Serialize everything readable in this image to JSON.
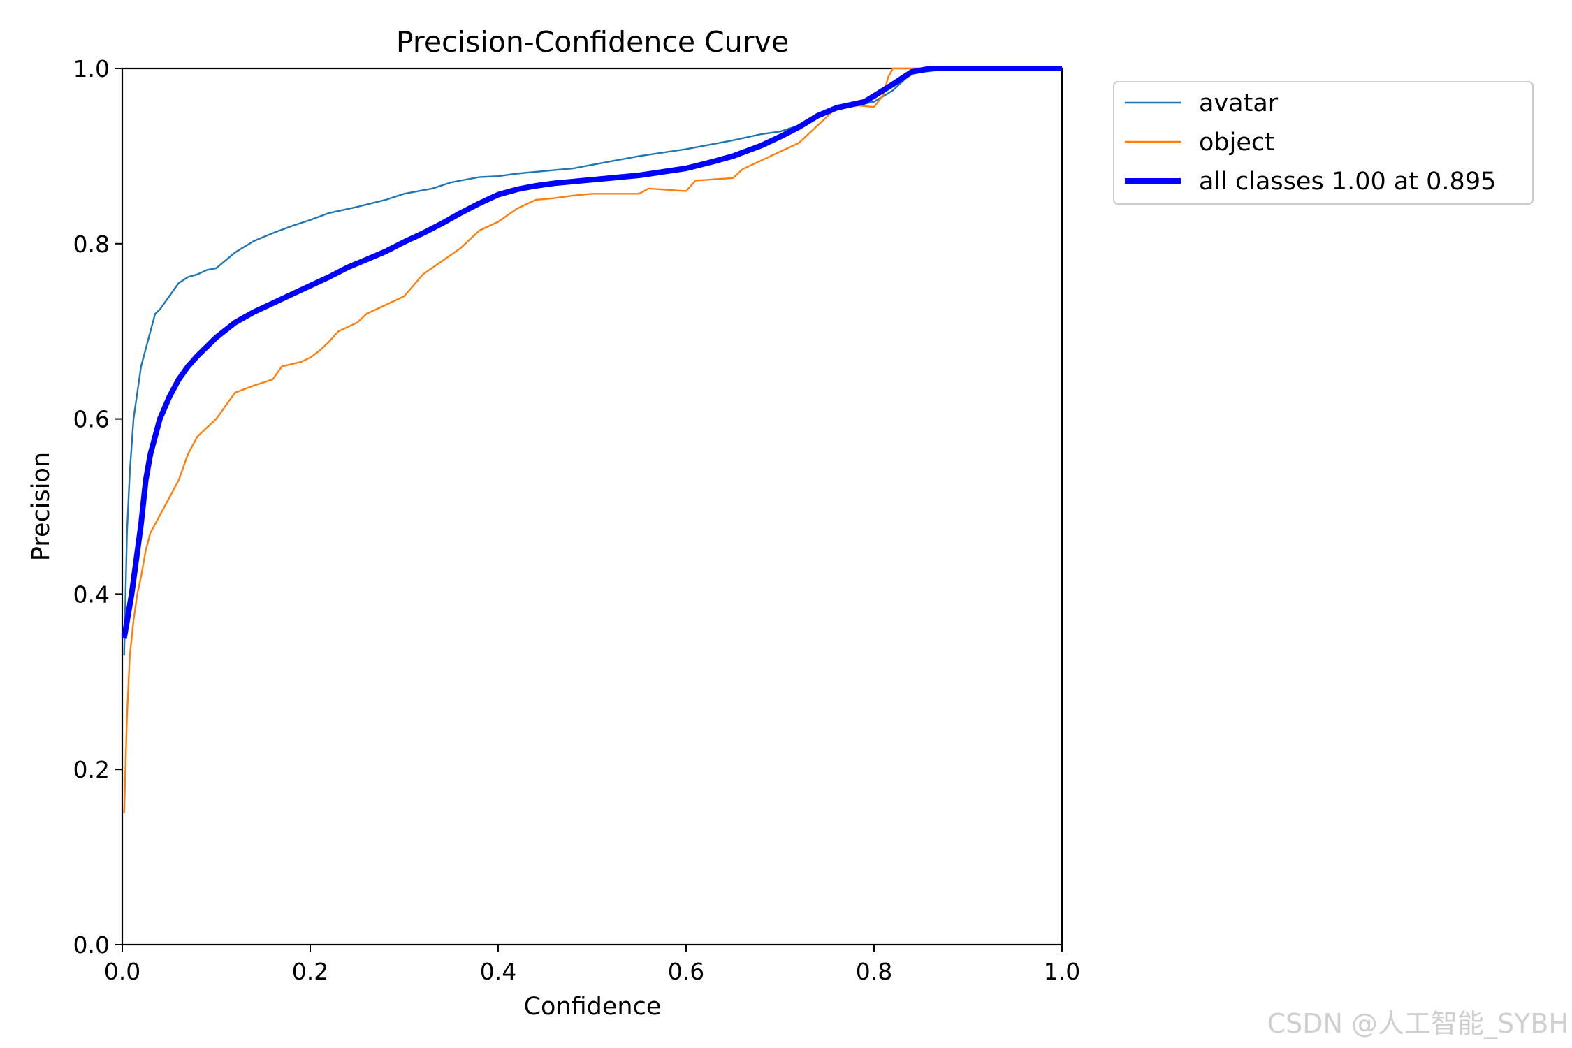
{
  "chart_data": {
    "type": "line",
    "title": "Precision-Confidence Curve",
    "xlabel": "Confidence",
    "ylabel": "Precision",
    "xlim": [
      0,
      1
    ],
    "ylim": [
      0,
      1
    ],
    "xticks": [
      "0.0",
      "0.2",
      "0.4",
      "0.6",
      "0.8",
      "1.0"
    ],
    "yticks": [
      "0.0",
      "0.2",
      "0.4",
      "0.6",
      "0.8",
      "1.0"
    ],
    "grid": false,
    "legend_position": "outside-top-right",
    "series": [
      {
        "name": "avatar",
        "color": "#1f77b4",
        "width": "thin",
        "points": [
          [
            0.002,
            0.33
          ],
          [
            0.005,
            0.47
          ],
          [
            0.008,
            0.54
          ],
          [
            0.012,
            0.6
          ],
          [
            0.016,
            0.63
          ],
          [
            0.02,
            0.66
          ],
          [
            0.025,
            0.68
          ],
          [
            0.03,
            0.7
          ],
          [
            0.035,
            0.72
          ],
          [
            0.04,
            0.725
          ],
          [
            0.05,
            0.74
          ],
          [
            0.06,
            0.755
          ],
          [
            0.07,
            0.762
          ],
          [
            0.08,
            0.765
          ],
          [
            0.09,
            0.77
          ],
          [
            0.1,
            0.772
          ],
          [
            0.12,
            0.79
          ],
          [
            0.14,
            0.803
          ],
          [
            0.16,
            0.812
          ],
          [
            0.18,
            0.82
          ],
          [
            0.2,
            0.827
          ],
          [
            0.22,
            0.835
          ],
          [
            0.25,
            0.842
          ],
          [
            0.28,
            0.85
          ],
          [
            0.3,
            0.857
          ],
          [
            0.33,
            0.863
          ],
          [
            0.35,
            0.87
          ],
          [
            0.38,
            0.876
          ],
          [
            0.4,
            0.877
          ],
          [
            0.42,
            0.88
          ],
          [
            0.45,
            0.883
          ],
          [
            0.48,
            0.886
          ],
          [
            0.5,
            0.89
          ],
          [
            0.55,
            0.9
          ],
          [
            0.6,
            0.908
          ],
          [
            0.65,
            0.918
          ],
          [
            0.68,
            0.925
          ],
          [
            0.7,
            0.928
          ],
          [
            0.72,
            0.935
          ],
          [
            0.75,
            0.95
          ],
          [
            0.78,
            0.958
          ],
          [
            0.8,
            0.962
          ],
          [
            0.82,
            0.975
          ],
          [
            0.84,
            0.995
          ],
          [
            0.86,
            0.997
          ],
          [
            0.88,
            1.0
          ],
          [
            1.0,
            1.0
          ]
        ]
      },
      {
        "name": "object",
        "color": "#ff7f0e",
        "width": "thin",
        "points": [
          [
            0.002,
            0.15
          ],
          [
            0.005,
            0.26
          ],
          [
            0.008,
            0.33
          ],
          [
            0.012,
            0.37
          ],
          [
            0.016,
            0.4
          ],
          [
            0.02,
            0.42
          ],
          [
            0.025,
            0.45
          ],
          [
            0.03,
            0.47
          ],
          [
            0.035,
            0.48
          ],
          [
            0.04,
            0.49
          ],
          [
            0.05,
            0.51
          ],
          [
            0.06,
            0.53
          ],
          [
            0.07,
            0.56
          ],
          [
            0.08,
            0.58
          ],
          [
            0.09,
            0.59
          ],
          [
            0.1,
            0.6
          ],
          [
            0.11,
            0.615
          ],
          [
            0.12,
            0.63
          ],
          [
            0.14,
            0.638
          ],
          [
            0.16,
            0.645
          ],
          [
            0.17,
            0.66
          ],
          [
            0.19,
            0.665
          ],
          [
            0.2,
            0.67
          ],
          [
            0.21,
            0.678
          ],
          [
            0.22,
            0.688
          ],
          [
            0.23,
            0.7
          ],
          [
            0.25,
            0.71
          ],
          [
            0.26,
            0.72
          ],
          [
            0.28,
            0.73
          ],
          [
            0.3,
            0.74
          ],
          [
            0.32,
            0.765
          ],
          [
            0.34,
            0.78
          ],
          [
            0.36,
            0.795
          ],
          [
            0.38,
            0.815
          ],
          [
            0.4,
            0.825
          ],
          [
            0.42,
            0.84
          ],
          [
            0.44,
            0.85
          ],
          [
            0.46,
            0.852
          ],
          [
            0.48,
            0.855
          ],
          [
            0.5,
            0.857
          ],
          [
            0.55,
            0.857
          ],
          [
            0.56,
            0.863
          ],
          [
            0.6,
            0.86
          ],
          [
            0.61,
            0.872
          ],
          [
            0.65,
            0.875
          ],
          [
            0.66,
            0.885
          ],
          [
            0.68,
            0.895
          ],
          [
            0.7,
            0.905
          ],
          [
            0.72,
            0.915
          ],
          [
            0.74,
            0.935
          ],
          [
            0.76,
            0.955
          ],
          [
            0.78,
            0.958
          ],
          [
            0.8,
            0.956
          ],
          [
            0.81,
            0.97
          ],
          [
            0.815,
            0.99
          ],
          [
            0.82,
            1.0
          ],
          [
            1.0,
            1.0
          ]
        ]
      },
      {
        "name": "all classes 1.00 at 0.895",
        "color": "#0000ff",
        "width": "thick",
        "points": [
          [
            0.002,
            0.35
          ],
          [
            0.01,
            0.4
          ],
          [
            0.02,
            0.48
          ],
          [
            0.025,
            0.53
          ],
          [
            0.03,
            0.56
          ],
          [
            0.04,
            0.6
          ],
          [
            0.05,
            0.625
          ],
          [
            0.06,
            0.645
          ],
          [
            0.07,
            0.66
          ],
          [
            0.08,
            0.672
          ],
          [
            0.1,
            0.693
          ],
          [
            0.12,
            0.71
          ],
          [
            0.14,
            0.722
          ],
          [
            0.16,
            0.732
          ],
          [
            0.18,
            0.742
          ],
          [
            0.2,
            0.752
          ],
          [
            0.22,
            0.762
          ],
          [
            0.24,
            0.773
          ],
          [
            0.26,
            0.782
          ],
          [
            0.28,
            0.791
          ],
          [
            0.3,
            0.802
          ],
          [
            0.32,
            0.812
          ],
          [
            0.34,
            0.823
          ],
          [
            0.36,
            0.835
          ],
          [
            0.38,
            0.846
          ],
          [
            0.4,
            0.856
          ],
          [
            0.42,
            0.862
          ],
          [
            0.44,
            0.866
          ],
          [
            0.46,
            0.869
          ],
          [
            0.48,
            0.871
          ],
          [
            0.5,
            0.873
          ],
          [
            0.55,
            0.878
          ],
          [
            0.6,
            0.886
          ],
          [
            0.63,
            0.894
          ],
          [
            0.65,
            0.9
          ],
          [
            0.68,
            0.912
          ],
          [
            0.7,
            0.922
          ],
          [
            0.72,
            0.933
          ],
          [
            0.74,
            0.946
          ],
          [
            0.76,
            0.955
          ],
          [
            0.79,
            0.962
          ],
          [
            0.82,
            0.982
          ],
          [
            0.84,
            0.996
          ],
          [
            0.86,
            1.0
          ],
          [
            0.895,
            1.0
          ],
          [
            1.0,
            1.0
          ]
        ]
      }
    ]
  },
  "watermark": "CSDN @人工智能_SYBH"
}
